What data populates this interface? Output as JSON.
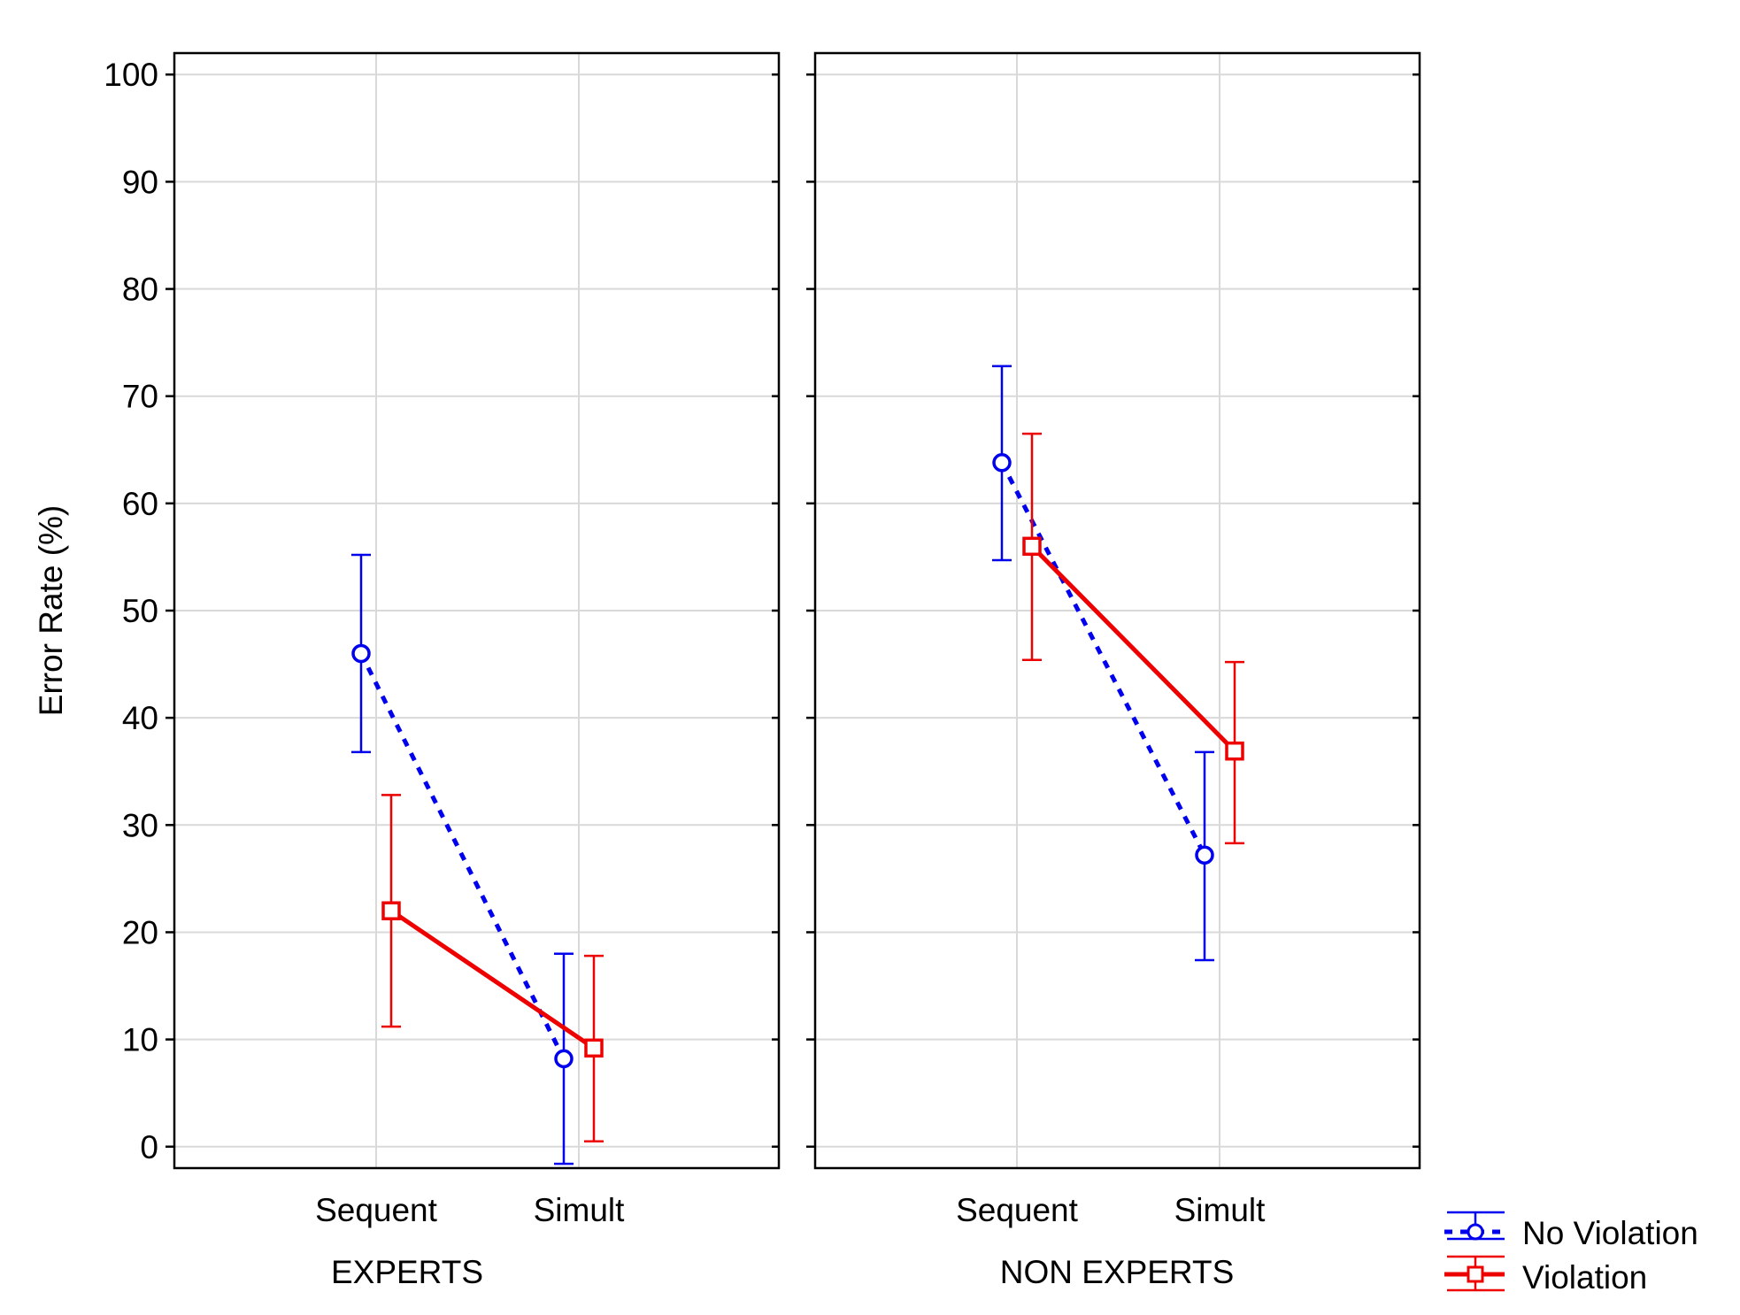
{
  "chart_data": {
    "type": "line",
    "ylabel": "Error Rate (%)",
    "ylim": [
      -2,
      102
    ],
    "yticks": [
      0,
      10,
      20,
      30,
      40,
      50,
      60,
      70,
      80,
      90,
      100
    ],
    "ytick_labels": [
      "0",
      "10",
      "20",
      "30",
      "40",
      "50",
      "60",
      "70",
      "80",
      "90",
      "100"
    ],
    "grid": true,
    "legend_position": "bottom-right",
    "categories": [
      "Sequent",
      "Simult"
    ],
    "series_styles": [
      {
        "name": "No Violation",
        "color": "#0000ee",
        "line": "dotted",
        "marker": "circle"
      },
      {
        "name": "Violation",
        "color": "#ee0000",
        "line": "solid",
        "marker": "square"
      }
    ],
    "panels": [
      {
        "title": "EXPERTS",
        "series": [
          {
            "name": "No Violation",
            "values": [
              46,
              8.2
            ],
            "lower": [
              36.8,
              -1.6
            ],
            "upper": [
              55.2,
              18
            ]
          },
          {
            "name": "Violation",
            "values": [
              22,
              9.2
            ],
            "lower": [
              11.2,
              0.5
            ],
            "upper": [
              32.8,
              17.8
            ]
          }
        ]
      },
      {
        "title": "NON EXPERTS",
        "series": [
          {
            "name": "No Violation",
            "values": [
              63.8,
              27.2
            ],
            "lower": [
              54.7,
              17.4
            ],
            "upper": [
              72.8,
              36.8
            ]
          },
          {
            "name": "Violation",
            "values": [
              56,
              36.9
            ],
            "lower": [
              45.4,
              28.3
            ],
            "upper": [
              66.5,
              45.2
            ]
          }
        ]
      }
    ]
  }
}
